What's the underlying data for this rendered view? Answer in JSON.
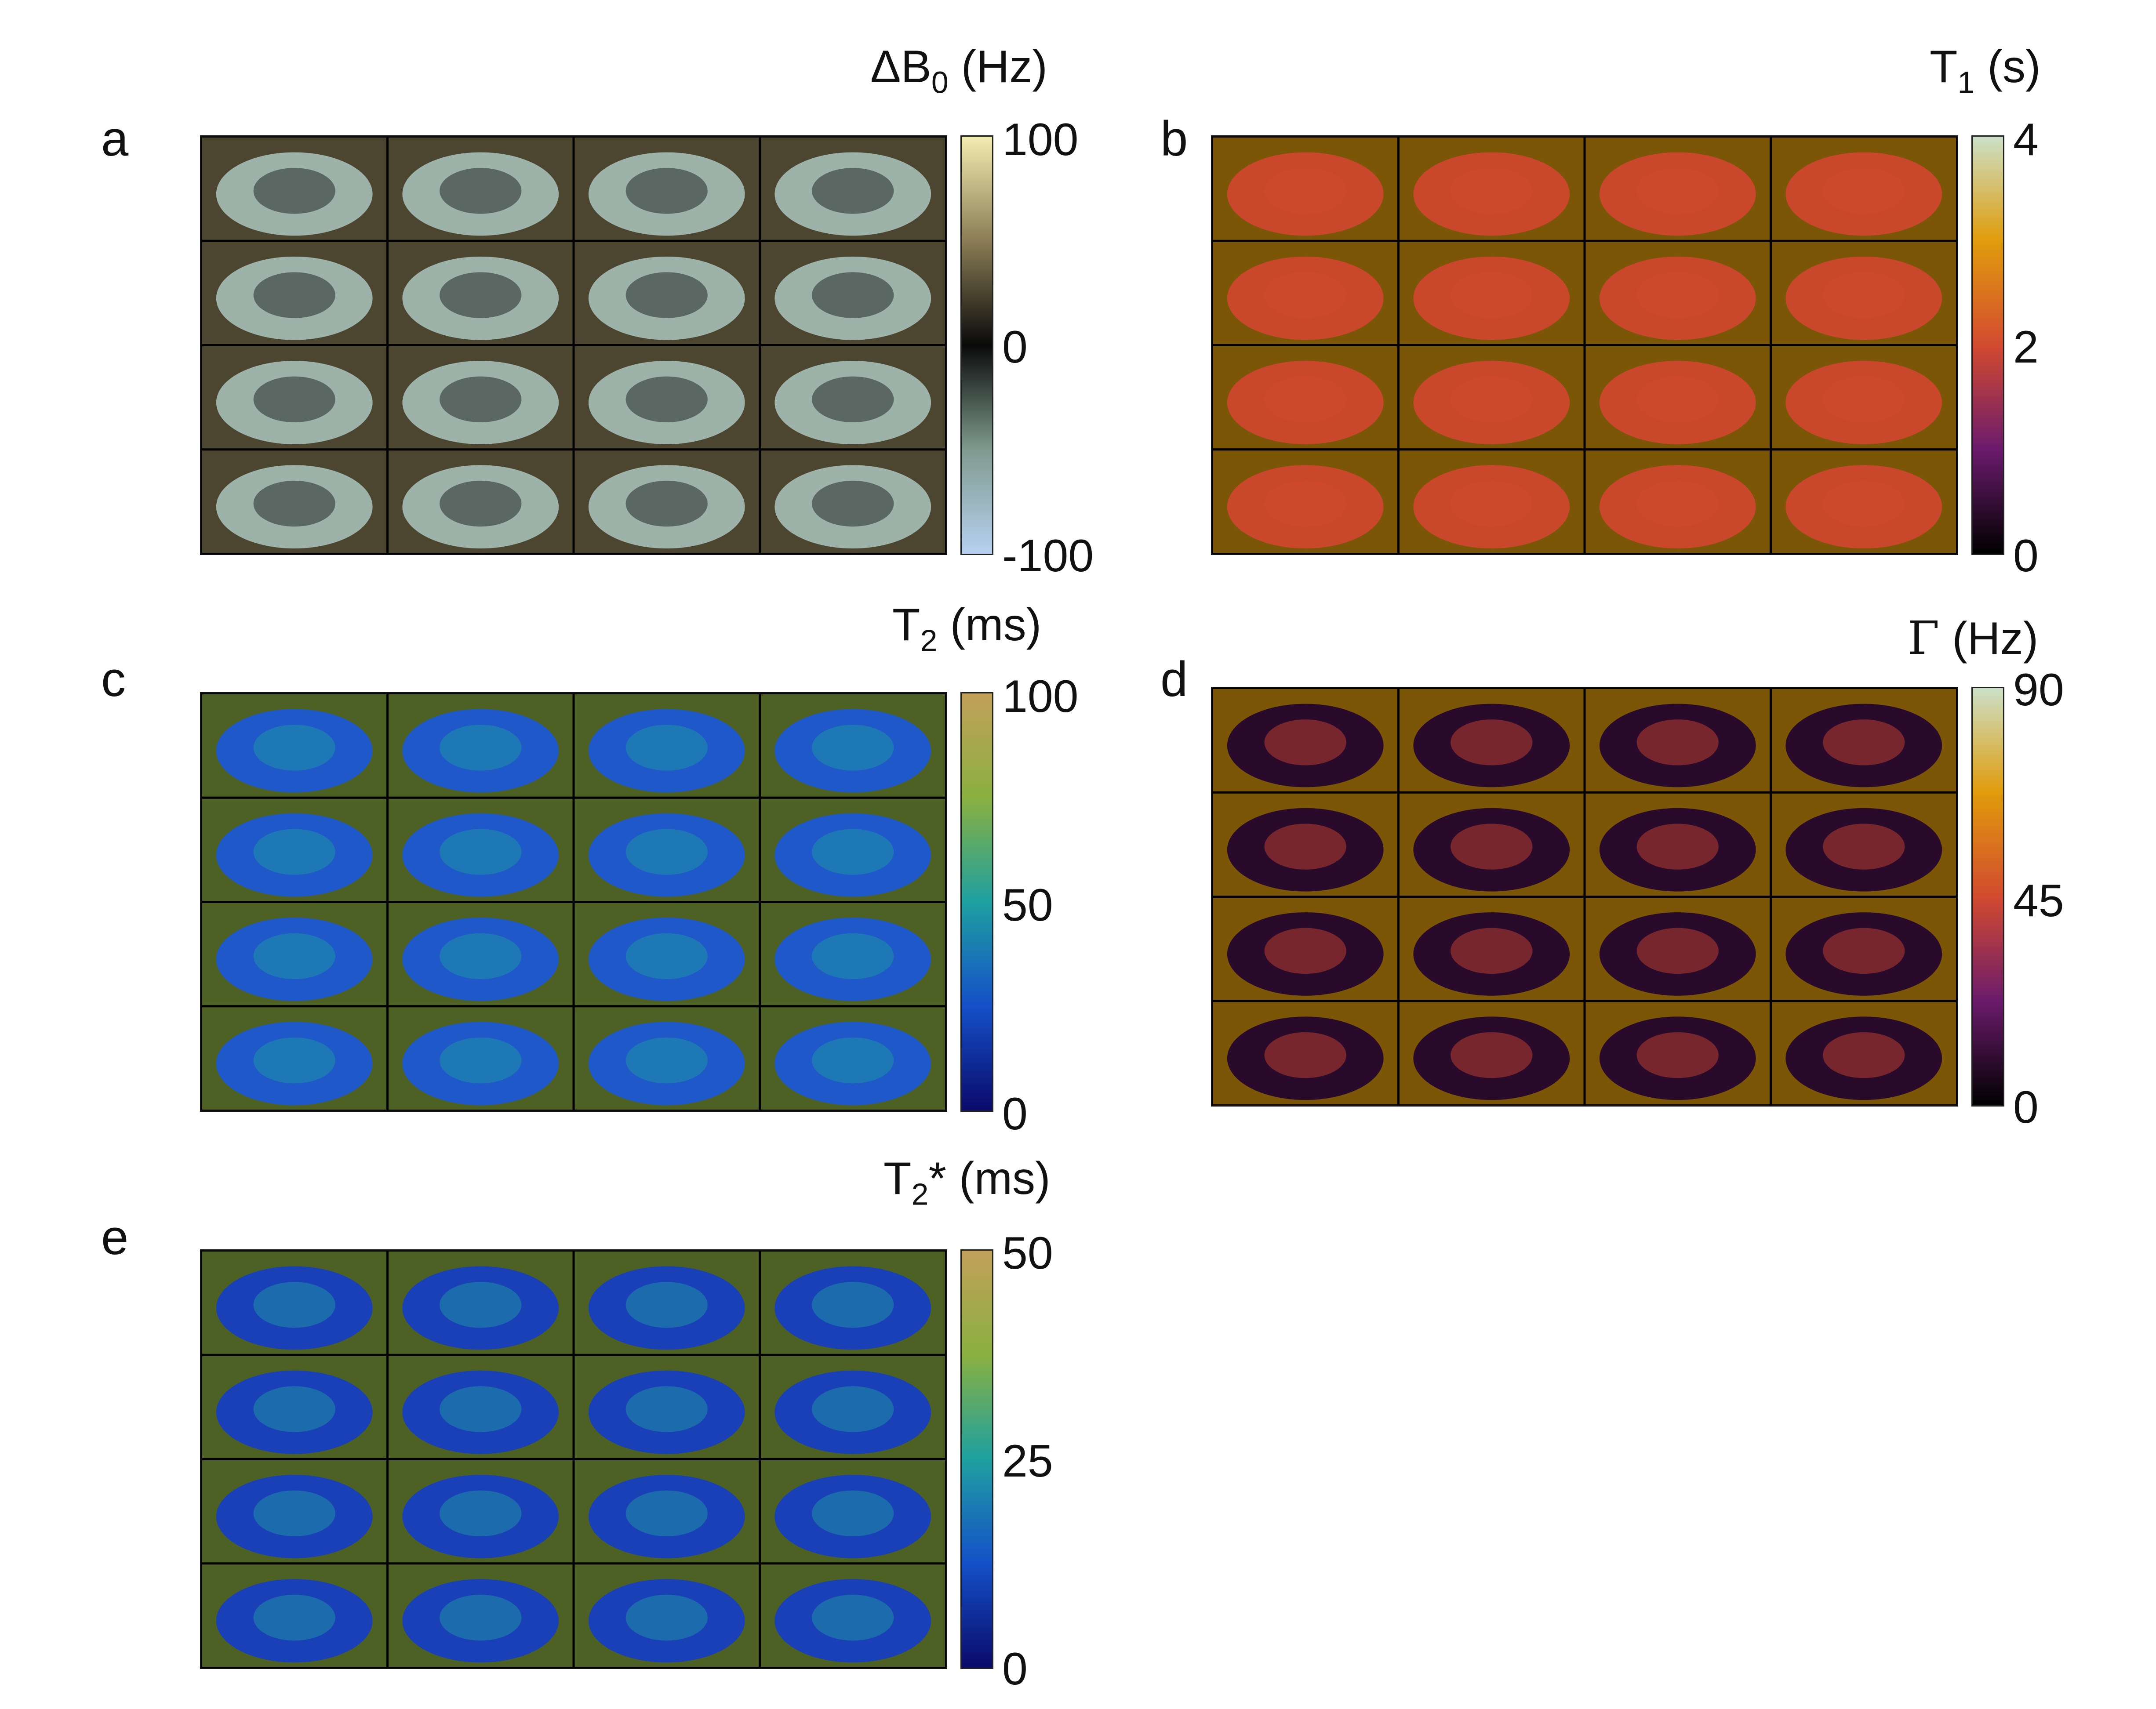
{
  "panels": [
    {
      "letter": "a",
      "title": {
        "sym": "ΔB",
        "sub": "0",
        "rest": " (Hz)"
      },
      "colormap": [
        "#b7d1f0",
        "#7f9a8e",
        "#0a0a0a",
        "#8a7d55",
        "#f2ecb0"
      ],
      "background": "#9db3aa",
      "ticks": [
        "100",
        "0",
        "-100"
      ]
    },
    {
      "letter": "b",
      "title": {
        "sym": "T",
        "sub": "1",
        "rest": " (s)"
      },
      "colormap": [
        "#000000",
        "#6b1b6c",
        "#d24a2f",
        "#e09c0c",
        "#cbe0c8"
      ],
      "background": "#c9482c",
      "ticks": [
        "4",
        "2",
        "0"
      ]
    },
    {
      "letter": "c",
      "title": {
        "sym": "T",
        "sub": "2",
        "rest": " (ms)"
      },
      "colormap": [
        "#0a0a6a",
        "#1450c8",
        "#1ea0a0",
        "#8ab040",
        "#c2a05a"
      ],
      "background": "#1f58c8",
      "ticks": [
        "100",
        "50",
        "0"
      ]
    },
    {
      "letter": "d",
      "title": {
        "sym": "Γ",
        "sub": "",
        "rest": " (Hz)"
      },
      "colormap": [
        "#000000",
        "#6b1b6c",
        "#d24a2f",
        "#e09c0c",
        "#cbe0c8"
      ],
      "background": "#2a0a2a",
      "ticks": [
        "90",
        "45",
        "0"
      ]
    },
    {
      "letter": "e",
      "title": {
        "sym": "T",
        "sub": "2",
        "rest": "* (ms)"
      },
      "colormap": [
        "#0a0a6a",
        "#1450c8",
        "#1ea0a0",
        "#8ab040",
        "#c2a05a"
      ],
      "background": "#1a40b8",
      "ticks": [
        "50",
        "25",
        "0"
      ]
    }
  ]
}
